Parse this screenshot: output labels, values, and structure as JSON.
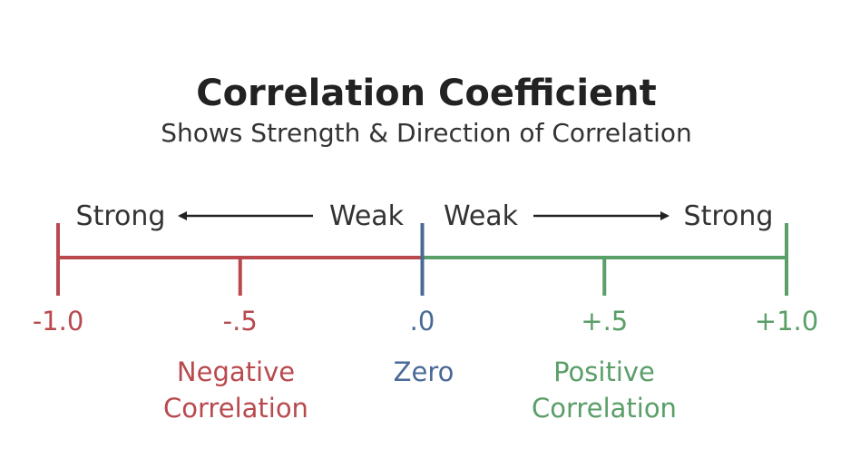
{
  "title": "Correlation Coefficient",
  "subtitle": "Shows Strength & Direction of Correlation",
  "strength": {
    "left_strong": "Strong",
    "left_weak": "Weak",
    "right_weak": "Weak",
    "right_strong": "Strong"
  },
  "scale": {
    "ticks": [
      {
        "label": "-1.0",
        "value": -1.0
      },
      {
        "label": "-.5",
        "value": -0.5
      },
      {
        "label": ".0",
        "value": 0.0
      },
      {
        "label": "+.5",
        "value": 0.5
      },
      {
        "label": "+1.0",
        "value": 1.0
      }
    ]
  },
  "categories": {
    "negative": [
      "Negative",
      "Correlation"
    ],
    "zero": "Zero",
    "positive": [
      "Positive",
      "Correlation"
    ]
  },
  "colors": {
    "negative": "#b84a4e",
    "zero": "#4a6a96",
    "positive": "#5a9e68",
    "arrow": "#222222",
    "text": "#333333",
    "title": "#222222"
  }
}
